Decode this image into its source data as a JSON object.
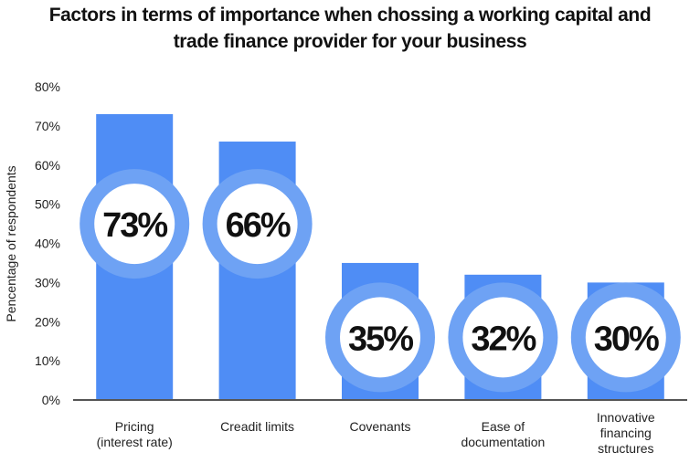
{
  "chart_data": {
    "type": "bar",
    "title_lines": [
      "Factors in terms of importance when chossing a working capital and",
      "trade finance provider for your business"
    ],
    "ylabel": "Pencentage of respondents",
    "ylim": [
      0,
      80
    ],
    "yticks": [
      0,
      10,
      20,
      30,
      40,
      50,
      60,
      70,
      80
    ],
    "ytick_labels": [
      "0%",
      "10%",
      "20%",
      "30%",
      "40%",
      "50%",
      "60%",
      "70%",
      "80%"
    ],
    "grid": false,
    "categories": [
      [
        "Pricing",
        "(interest rate)"
      ],
      [
        "Creadit limits"
      ],
      [
        "Covenants"
      ],
      [
        "Ease of",
        "documentation"
      ],
      [
        "Innovative",
        "financing",
        "structures"
      ]
    ],
    "values": [
      73,
      66,
      35,
      32,
      30
    ],
    "data_labels": [
      "73%",
      "66%",
      "35%",
      "32%",
      "30%"
    ],
    "colors": {
      "bar": "#4f8df5",
      "ring": "#6ea2f4",
      "inner": "#ffffff",
      "axis": "#555555"
    }
  }
}
